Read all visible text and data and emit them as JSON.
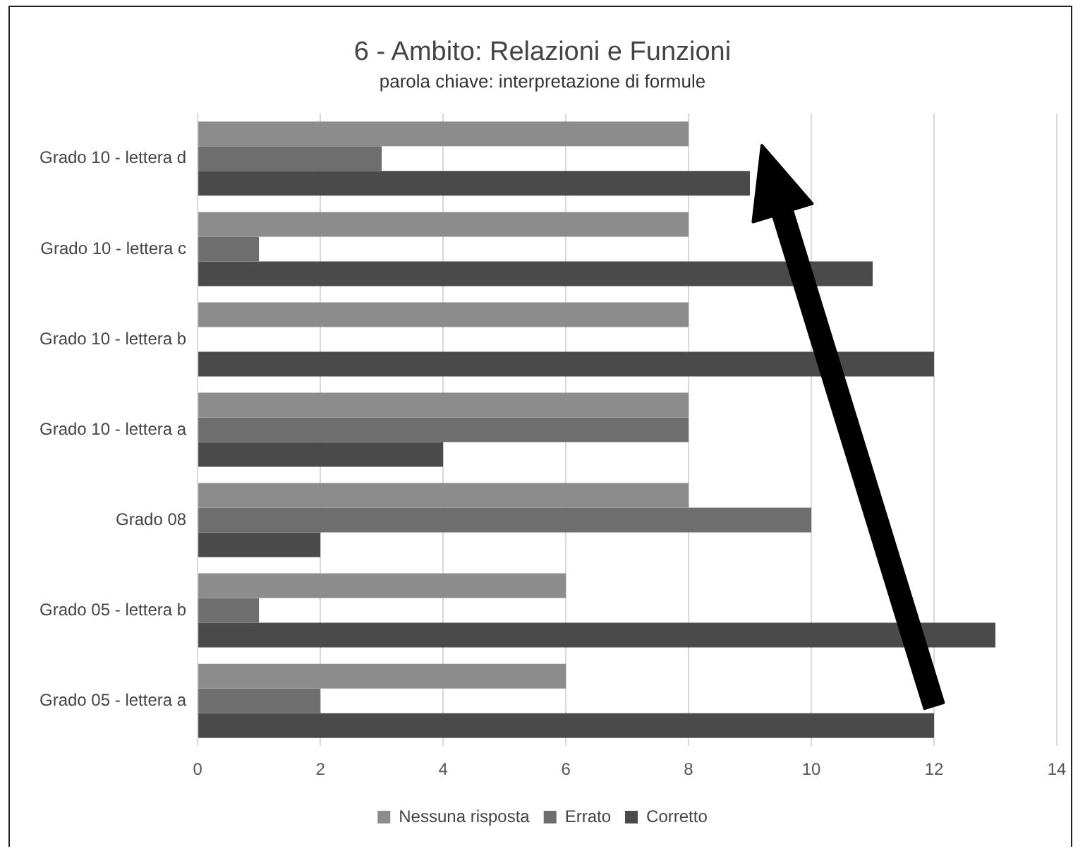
{
  "chart_data": {
    "type": "bar",
    "orientation": "horizontal",
    "title": "6 - Ambito: Relazioni e Funzioni",
    "subtitle": "parola chiave: interpretazione di formule",
    "categories": [
      "Grado 10 - lettera d",
      "Grado 10 - lettera c",
      "Grado 10 - lettera b",
      "Grado 10 - lettera a",
      "Grado 08",
      "Grado 05 - lettera b",
      "Grado 05 - lettera a"
    ],
    "series": [
      {
        "name": "Nessuna risposta",
        "color": "#8c8c8c",
        "values": [
          8,
          8,
          8,
          8,
          8,
          6,
          6
        ]
      },
      {
        "name": "Errato",
        "color": "#6e6e6e",
        "values": [
          3,
          1,
          0,
          8,
          10,
          1,
          2
        ]
      },
      {
        "name": "Corretto",
        "color": "#4a4a4a",
        "values": [
          9,
          11,
          12,
          4,
          2,
          13,
          12
        ]
      }
    ],
    "xlim": [
      0,
      14
    ],
    "xticks": [
      0,
      2,
      4,
      6,
      8,
      10,
      12,
      14
    ],
    "grid": "x",
    "legend": "bottom"
  }
}
